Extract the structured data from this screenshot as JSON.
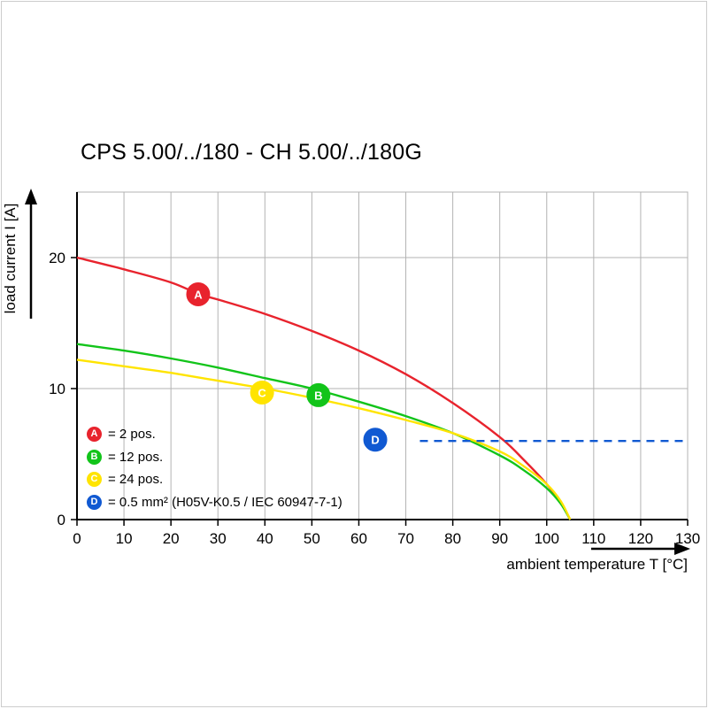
{
  "title": "CPS 5.00/../180 - CH 5.00/../180G",
  "colors": {
    "red": "#e8232d",
    "green": "#12c41a",
    "yellow": "#ffe400",
    "blue": "#1059d2",
    "grid": "#b3b3b3",
    "axis": "#000000",
    "background": "#ffffff"
  },
  "chart_data": {
    "type": "line",
    "title": "CPS 5.00/../180 - CH 5.00/../180G",
    "xlabel": "ambient temperature T [°C]",
    "ylabel": "load current I [A]",
    "xlim": [
      0,
      130
    ],
    "ylim": [
      0,
      25
    ],
    "x_ticks": [
      0,
      10,
      20,
      30,
      40,
      50,
      60,
      70,
      80,
      90,
      100,
      110,
      120,
      130
    ],
    "y_ticks": [
      0,
      10,
      20
    ],
    "grid": true,
    "legend_position": "lower-left-inside",
    "series": [
      {
        "id": "A",
        "legend": "= 2 pos.",
        "color": "#e8232d",
        "line": "solid",
        "points": [
          [
            0,
            20
          ],
          [
            10,
            19.1
          ],
          [
            20,
            18.1
          ],
          [
            26,
            17.2
          ],
          [
            30,
            16.8
          ],
          [
            40,
            15.7
          ],
          [
            50,
            14.4
          ],
          [
            60,
            12.9
          ],
          [
            70,
            11.1
          ],
          [
            80,
            8.9
          ],
          [
            90,
            6.3
          ],
          [
            95,
            4.6
          ],
          [
            100,
            2.7
          ],
          [
            103,
            1.3
          ],
          [
            105,
            0
          ]
        ],
        "marker": {
          "x": 25.8,
          "y": 17.2,
          "label": "A"
        }
      },
      {
        "id": "B",
        "legend": "= 12 pos.",
        "color": "#12c41a",
        "line": "solid",
        "points": [
          [
            0,
            13.4
          ],
          [
            10,
            12.9
          ],
          [
            20,
            12.3
          ],
          [
            30,
            11.6
          ],
          [
            40,
            10.8
          ],
          [
            50,
            10.0
          ],
          [
            60,
            9.0
          ],
          [
            70,
            7.9
          ],
          [
            80,
            6.6
          ],
          [
            90,
            4.9
          ],
          [
            95,
            3.8
          ],
          [
            100,
            2.4
          ],
          [
            103,
            1.2
          ],
          [
            105,
            0
          ]
        ],
        "marker": {
          "x": 51.4,
          "y": 9.5,
          "label": "B"
        }
      },
      {
        "id": "C",
        "legend": "= 24 pos.",
        "color": "#ffe400",
        "line": "solid",
        "points": [
          [
            0,
            12.2
          ],
          [
            10,
            11.7
          ],
          [
            20,
            11.2
          ],
          [
            30,
            10.6
          ],
          [
            40,
            10.0
          ],
          [
            50,
            9.3
          ],
          [
            60,
            8.5
          ],
          [
            70,
            7.6
          ],
          [
            80,
            6.6
          ],
          [
            90,
            5.2
          ],
          [
            95,
            4.1
          ],
          [
            100,
            2.7
          ],
          [
            103,
            1.4
          ],
          [
            105,
            0
          ]
        ],
        "marker": {
          "x": 39.4,
          "y": 9.7,
          "label": "C"
        }
      },
      {
        "id": "D",
        "legend": "= 0.5 mm² (H05V-K0.5 / IEC 60947-7-1)",
        "color": "#1059d2",
        "line": "dashed",
        "points": [
          [
            73,
            6
          ],
          [
            130,
            6
          ]
        ],
        "marker": {
          "x": 63.5,
          "y": 6.1,
          "label": "D"
        }
      }
    ]
  }
}
